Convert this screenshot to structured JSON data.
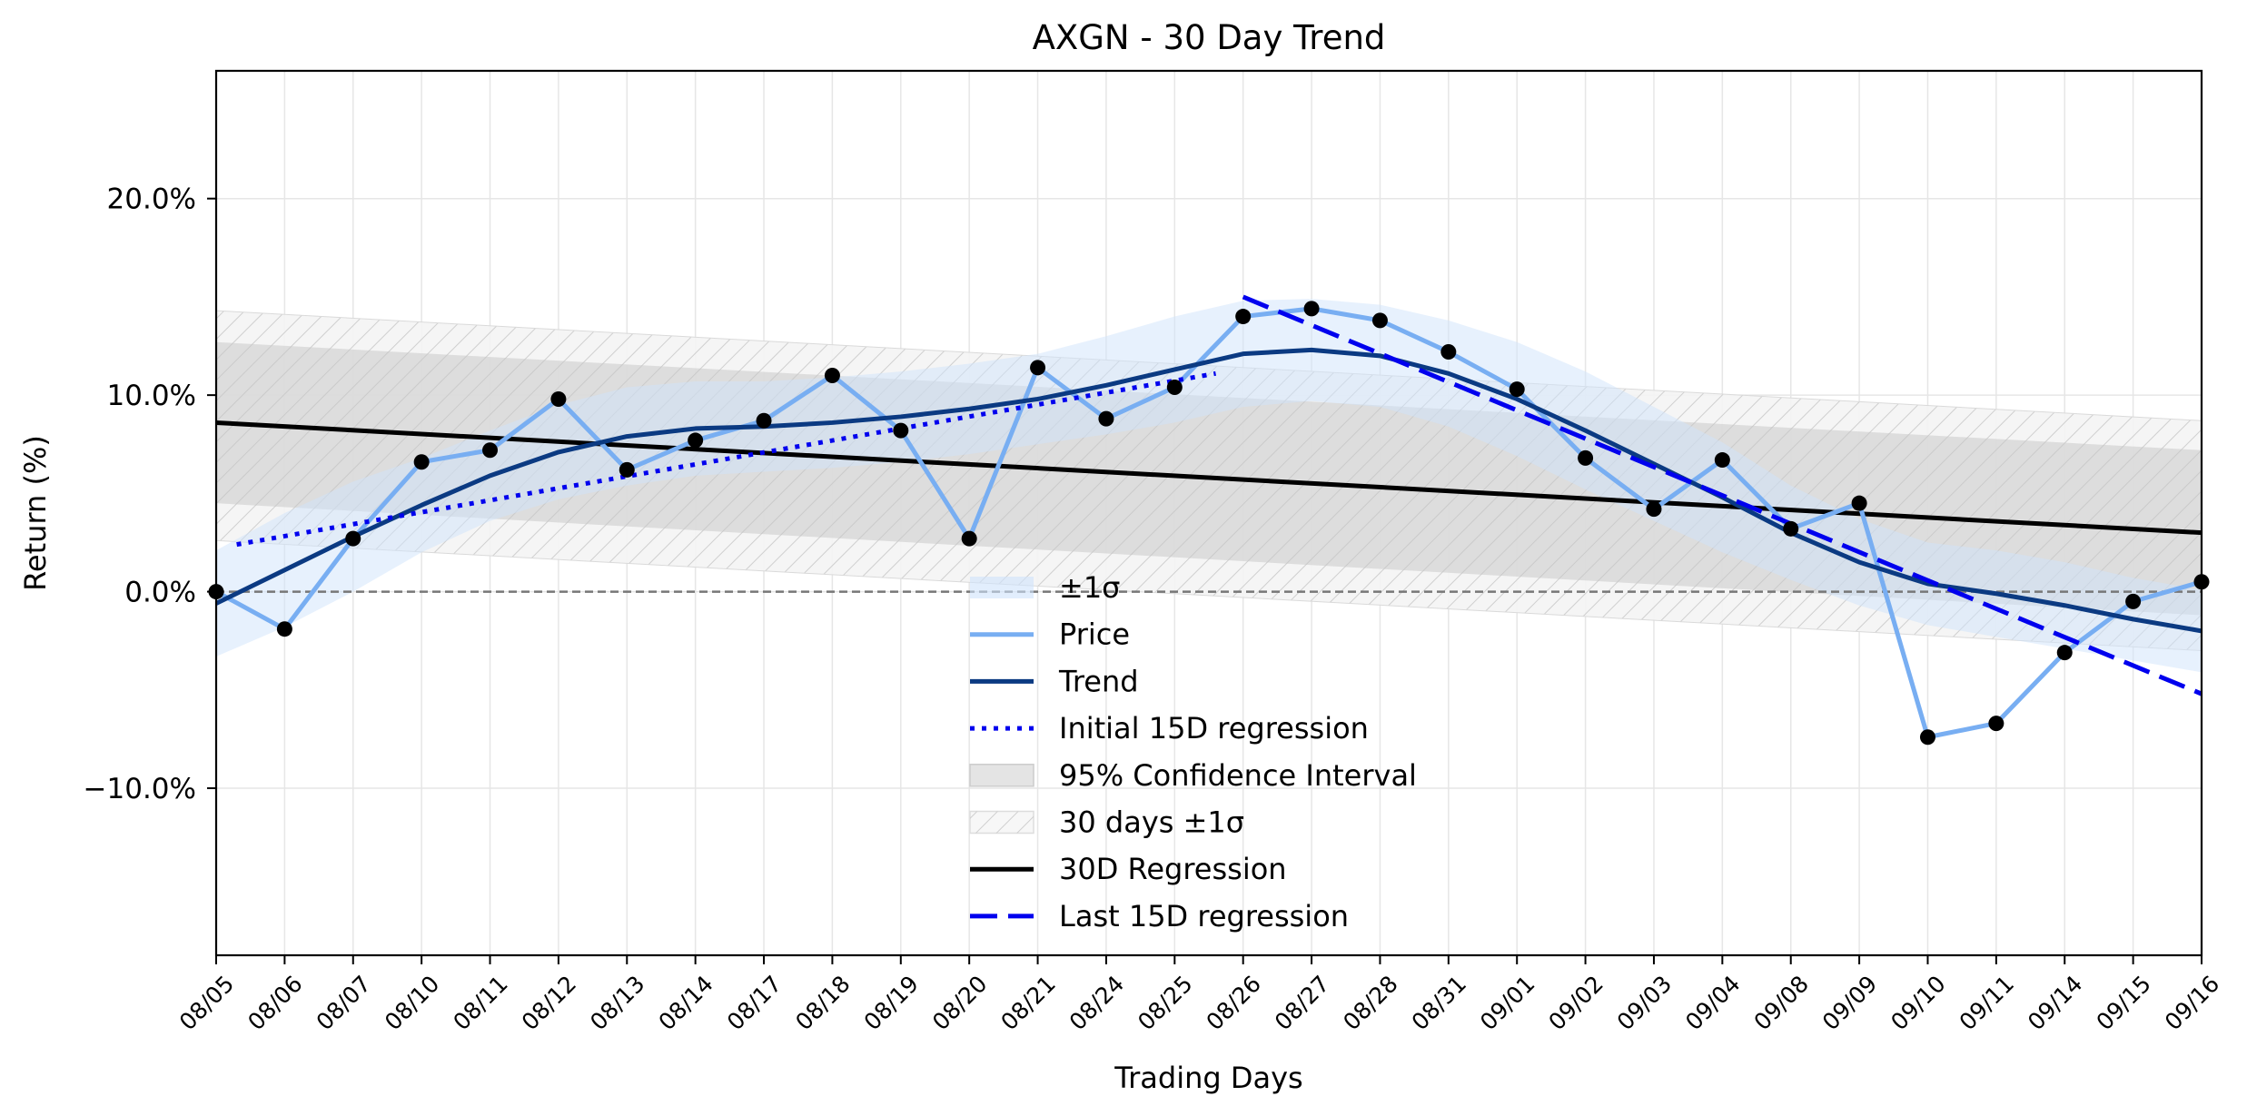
{
  "chart_data": {
    "type": "line",
    "title": "AXGN - 30 Day Trend",
    "xlabel": "Trading Days",
    "ylabel": "Return (%)",
    "ylim": [
      -18.5,
      26.5
    ],
    "yticks": [
      -10,
      0,
      10,
      20
    ],
    "ytick_labels": [
      "−10.0%",
      "0.0%",
      "10.0%",
      "20.0%"
    ],
    "grid": true,
    "legend_position": "lower-center",
    "categories": [
      "08/05",
      "08/06",
      "08/07",
      "08/10",
      "08/11",
      "08/12",
      "08/13",
      "08/14",
      "08/17",
      "08/18",
      "08/19",
      "08/20",
      "08/21",
      "08/24",
      "08/25",
      "08/26",
      "08/27",
      "08/28",
      "08/31",
      "09/01",
      "09/02",
      "09/03",
      "09/04",
      "09/08",
      "09/09",
      "09/10",
      "09/11",
      "09/14",
      "09/15",
      "09/16"
    ],
    "price": [
      0.0,
      -1.9,
      2.7,
      6.6,
      7.2,
      9.8,
      6.2,
      7.7,
      8.7,
      11.0,
      8.2,
      2.7,
      11.4,
      8.8,
      10.4,
      14.0,
      14.4,
      13.8,
      12.2,
      10.3,
      6.8,
      4.2,
      6.7,
      3.2,
      4.5,
      -7.4,
      -6.7,
      -3.1,
      -0.5,
      0.5
    ],
    "trend": [
      -0.6,
      1.1,
      2.8,
      4.4,
      5.9,
      7.1,
      7.9,
      8.3,
      8.4,
      8.6,
      8.9,
      9.3,
      9.8,
      10.5,
      11.3,
      12.1,
      12.3,
      12.0,
      11.1,
      9.8,
      8.2,
      6.5,
      4.8,
      3.0,
      1.5,
      0.4,
      -0.1,
      -0.7,
      -1.4,
      -2.0
    ],
    "sigma_lower": [
      -3.3,
      -1.8,
      0.0,
      2.0,
      3.6,
      4.7,
      5.4,
      5.9,
      6.1,
      6.3,
      6.6,
      7.0,
      7.5,
      8.0,
      8.6,
      9.4,
      9.7,
      9.4,
      8.4,
      6.9,
      5.2,
      3.6,
      2.0,
      0.6,
      -0.7,
      -1.7,
      -2.3,
      -2.9,
      -3.5,
      -4.1
    ],
    "sigma_upper": [
      2.1,
      4.0,
      5.6,
      6.8,
      8.2,
      9.5,
      10.4,
      10.7,
      10.7,
      10.9,
      11.2,
      11.6,
      12.1,
      13.0,
      14.0,
      14.8,
      14.9,
      14.6,
      13.8,
      12.7,
      11.2,
      9.4,
      7.6,
      5.4,
      3.7,
      2.5,
      2.1,
      1.5,
      0.7,
      0.1
    ],
    "regression_30d": {
      "start": 8.6,
      "end": 3.0
    },
    "ci95": {
      "upper_start": 12.7,
      "upper_end": 7.2,
      "lower_start": 4.5,
      "lower_end": -1.2
    },
    "sigma_30d": {
      "upper_start": 14.3,
      "upper_end": 8.7,
      "lower_start": 2.6,
      "lower_end": -3.0
    },
    "initial_15d": {
      "x_start_index": 0.3,
      "x_end_index": 14.6,
      "y_start": 2.4,
      "y_end": 11.1
    },
    "last_15d": {
      "x_start_index": 15,
      "x_end_index": 29,
      "y_start": 15.0,
      "y_end": -5.2
    },
    "zero_line": 0,
    "colors": {
      "price": "#78aef2",
      "trend": "#0b3a82",
      "initial_15d": "#0000ee",
      "last_15d": "#0000ee",
      "regression_30d": "#000000",
      "sigma_band": "#cfe3fb",
      "ci95": "#c6c6c6",
      "sigma_30d": "#d2d2d2",
      "points": "#000000",
      "zero_line": "#777777"
    },
    "legend": [
      {
        "label": "±1σ",
        "kind": "fill-blue"
      },
      {
        "label": "Price",
        "kind": "line-price"
      },
      {
        "label": "Trend",
        "kind": "line-trend"
      },
      {
        "label": "Initial 15D regression",
        "kind": "line-dotted"
      },
      {
        "label": "95% Confidence Interval",
        "kind": "fill-gray"
      },
      {
        "label": "30 days ±1σ",
        "kind": "fill-hatch"
      },
      {
        "label": "30D Regression",
        "kind": "line-black"
      },
      {
        "label": "Last 15D regression",
        "kind": "line-dashed"
      }
    ]
  }
}
